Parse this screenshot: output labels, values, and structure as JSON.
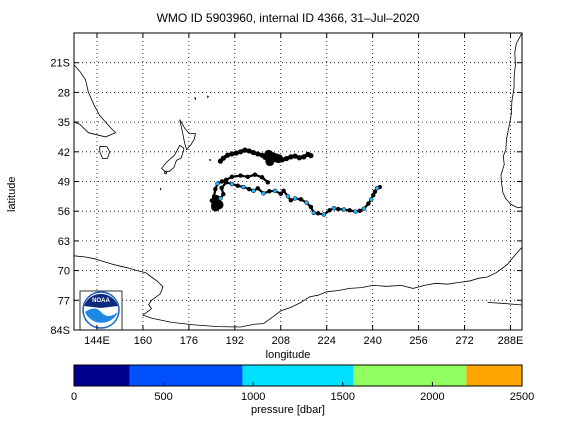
{
  "title": "WMO ID 5903960, internal ID 4366, 31–Jul–2020",
  "map": {
    "xlabel": "longitude",
    "ylabel": "latitude",
    "lon_ticks": [
      144,
      160,
      176,
      192,
      208,
      224,
      240,
      256,
      272,
      288
    ],
    "lon_tick_labels": [
      "144E",
      "160",
      "176",
      "192",
      "208",
      "224",
      "240",
      "256",
      "272",
      "288E"
    ],
    "lat_ticks": [
      -21,
      -28,
      -35,
      -42,
      -49,
      -56,
      -63,
      -70,
      -77,
      -84
    ],
    "lat_tick_labels": [
      "21S",
      "28",
      "35",
      "42",
      "49",
      "56",
      "63",
      "70",
      "77",
      "84S"
    ],
    "lon_range": [
      136,
      292
    ],
    "lat_range": [
      -84,
      -14
    ],
    "grid": true,
    "logo_text": "NOAA"
  },
  "colorbar": {
    "label": "pressure [dbar]",
    "ticks": [
      0,
      500,
      1000,
      1500,
      2000,
      2500
    ],
    "range": [
      0,
      2500
    ],
    "bands": [
      {
        "from": 0,
        "to": 310,
        "color": "#00008f"
      },
      {
        "from": 310,
        "to": 940,
        "color": "#0050ff"
      },
      {
        "from": 940,
        "to": 1560,
        "color": "#00e0ff"
      },
      {
        "from": 1560,
        "to": 2190,
        "color": "#90ff60"
      },
      {
        "from": 2190,
        "to": 2500,
        "color": "#ffa500"
      }
    ]
  },
  "chart_data": {
    "type": "scatter",
    "title": "WMO ID 5903960, internal ID 4366, 31–Jul–2020",
    "xlabel": "longitude",
    "ylabel": "latitude",
    "xlim": [
      136,
      292
    ],
    "ylim": [
      -84,
      -14
    ],
    "trajectory_color": "#000000",
    "trajectory": [
      [
        203.5,
        -49.2
      ],
      [
        201.5,
        -48.0
      ],
      [
        199.0,
        -47.4
      ],
      [
        196.5,
        -47.9
      ],
      [
        194.0,
        -47.6
      ],
      [
        191.0,
        -47.9
      ],
      [
        189.0,
        -48.6
      ],
      [
        187.5,
        -49.0
      ],
      [
        186.0,
        -49.5
      ],
      [
        185.2,
        -50.8
      ],
      [
        184.8,
        -52.5
      ],
      [
        184.0,
        -53.5
      ],
      [
        184.5,
        -54.5
      ],
      [
        186.0,
        -54.3
      ],
      [
        187.0,
        -53.0
      ],
      [
        188.0,
        -52.0
      ],
      [
        187.4,
        -50.5
      ],
      [
        189.0,
        -49.2
      ],
      [
        191.0,
        -49.6
      ],
      [
        193.0,
        -50.0
      ],
      [
        195.0,
        -50.3
      ],
      [
        197.0,
        -50.8
      ],
      [
        198.5,
        -51.2
      ],
      [
        200.0,
        -50.6
      ],
      [
        202.0,
        -51.8
      ],
      [
        204.0,
        -51.3
      ],
      [
        206.0,
        -51.2
      ],
      [
        208.0,
        -51.9
      ],
      [
        209.0,
        -51.2
      ],
      [
        210.5,
        -52.5
      ],
      [
        211.5,
        -53.4
      ],
      [
        213.0,
        -53.0
      ],
      [
        215.0,
        -53.2
      ],
      [
        217.0,
        -54.0
      ],
      [
        218.5,
        -55.0
      ],
      [
        219.5,
        -56.4
      ],
      [
        221.0,
        -56.5
      ],
      [
        223.0,
        -56.8
      ],
      [
        225.0,
        -55.8
      ],
      [
        226.5,
        -55.3
      ],
      [
        228.0,
        -55.5
      ],
      [
        230.0,
        -55.6
      ],
      [
        232.0,
        -55.8
      ],
      [
        234.0,
        -56.1
      ],
      [
        235.5,
        -55.9
      ],
      [
        237.0,
        -55.4
      ],
      [
        238.5,
        -54.2
      ],
      [
        239.5,
        -53.2
      ],
      [
        240.2,
        -52.2
      ],
      [
        240.8,
        -51.4
      ],
      [
        241.5,
        -50.6
      ],
      [
        242.5,
        -50.3
      ]
    ],
    "blue_profiles": [
      [
        186.0,
        -49.5
      ],
      [
        187.0,
        -53.0
      ],
      [
        191.0,
        -49.6
      ],
      [
        195.0,
        -50.3
      ],
      [
        198.5,
        -51.2
      ],
      [
        202.0,
        -51.8
      ],
      [
        206.0,
        -51.2
      ],
      [
        210.5,
        -52.5
      ],
      [
        213.0,
        -53.0
      ],
      [
        217.0,
        -54.0
      ],
      [
        219.5,
        -56.4
      ],
      [
        223.0,
        -56.8
      ],
      [
        226.5,
        -55.3
      ],
      [
        230.0,
        -55.6
      ],
      [
        234.0,
        -56.1
      ],
      [
        237.0,
        -55.4
      ],
      [
        239.5,
        -53.2
      ],
      [
        241.5,
        -50.6
      ]
    ],
    "dense_track": [
      [
        187.0,
        -44.2
      ],
      [
        188.0,
        -43.5
      ],
      [
        189.5,
        -42.8
      ],
      [
        191.0,
        -42.5
      ],
      [
        192.5,
        -42.3
      ],
      [
        194.0,
        -42.0
      ],
      [
        195.5,
        -41.6
      ],
      [
        197.0,
        -41.8
      ],
      [
        198.5,
        -42.2
      ],
      [
        200.0,
        -42.5
      ],
      [
        201.5,
        -42.8
      ],
      [
        202.5,
        -43.3
      ],
      [
        203.5,
        -43.6
      ],
      [
        204.5,
        -43.4
      ],
      [
        205.5,
        -43.8
      ],
      [
        206.5,
        -43.5
      ],
      [
        207.5,
        -43.9
      ],
      [
        208.5,
        -43.9
      ],
      [
        210.0,
        -43.6
      ],
      [
        211.5,
        -43.2
      ],
      [
        213.0,
        -43.0
      ],
      [
        214.5,
        -43.4
      ],
      [
        216.0,
        -43.2
      ],
      [
        217.5,
        -42.6
      ],
      [
        218.5,
        -42.9
      ]
    ],
    "large_markers": [
      [
        203.8,
        -42.6
      ],
      [
        205.0,
        -43.1
      ],
      [
        206.2,
        -43.4
      ],
      [
        207.2,
        -43.6
      ],
      [
        204.2,
        -44.3
      ],
      [
        186.5,
        -54.5
      ],
      [
        185.3,
        -55.0
      ],
      [
        185.5,
        -53.2
      ]
    ]
  }
}
